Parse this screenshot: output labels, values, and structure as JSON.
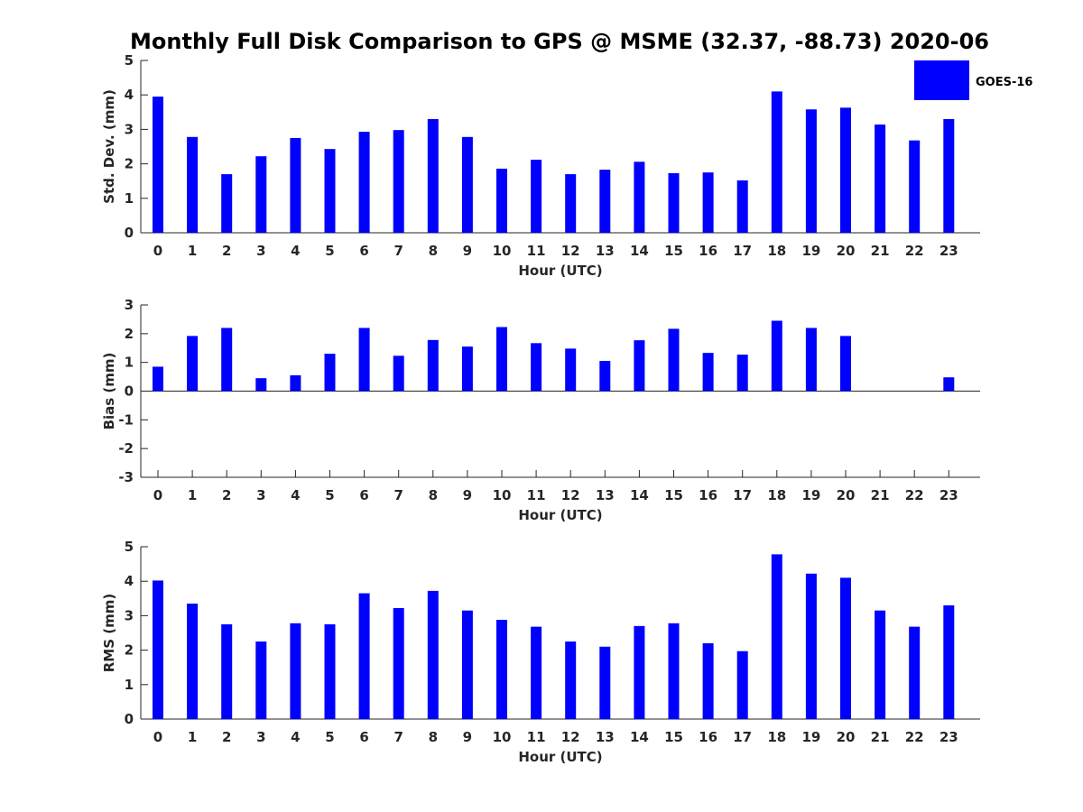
{
  "title": "Monthly Full Disk Comparison to GPS @ MSME (32.37, -88.73) 2020-06",
  "legend": {
    "label": "GOES-16",
    "color": "#0000ff",
    "placement": "top-right"
  },
  "chart_data": [
    {
      "type": "bar",
      "name": "std-dev",
      "ylabel": "Std. Dev. (mm)",
      "xlabel": "Hour (UTC)",
      "ylim": [
        0,
        5
      ],
      "yticks": [
        0,
        1,
        2,
        3,
        4,
        5
      ],
      "categories": [
        "0",
        "1",
        "2",
        "3",
        "4",
        "5",
        "6",
        "7",
        "8",
        "9",
        "10",
        "11",
        "12",
        "13",
        "14",
        "15",
        "16",
        "17",
        "18",
        "19",
        "20",
        "21",
        "22",
        "23"
      ],
      "series": [
        {
          "name": "GOES-16",
          "values": [
            3.95,
            2.78,
            1.7,
            2.22,
            2.75,
            2.43,
            2.93,
            2.98,
            3.3,
            2.78,
            1.86,
            2.12,
            1.7,
            1.83,
            2.06,
            1.73,
            1.75,
            1.52,
            4.1,
            3.58,
            3.63,
            3.14,
            2.68,
            3.3
          ]
        }
      ]
    },
    {
      "type": "bar",
      "name": "bias",
      "ylabel": "Bias (mm)",
      "xlabel": "Hour (UTC)",
      "ylim": [
        -3,
        3
      ],
      "yticks": [
        -3,
        -2,
        -1,
        0,
        1,
        2,
        3
      ],
      "categories": [
        "0",
        "1",
        "2",
        "3",
        "4",
        "5",
        "6",
        "7",
        "8",
        "9",
        "10",
        "11",
        "12",
        "13",
        "14",
        "15",
        "16",
        "17",
        "18",
        "19",
        "20",
        "21",
        "22",
        "23"
      ],
      "series": [
        {
          "name": "GOES-16",
          "values": [
            0.85,
            1.92,
            2.2,
            0.45,
            0.55,
            1.3,
            2.2,
            1.23,
            1.78,
            1.55,
            2.23,
            1.67,
            1.48,
            1.05,
            1.77,
            2.17,
            1.33,
            1.27,
            2.45,
            2.2,
            1.92,
            0,
            0,
            0.48
          ]
        }
      ]
    },
    {
      "type": "bar",
      "name": "rms",
      "ylabel": "RMS (mm)",
      "xlabel": "Hour (UTC)",
      "ylim": [
        0,
        5
      ],
      "yticks": [
        0,
        1,
        2,
        3,
        4,
        5
      ],
      "categories": [
        "0",
        "1",
        "2",
        "3",
        "4",
        "5",
        "6",
        "7",
        "8",
        "9",
        "10",
        "11",
        "12",
        "13",
        "14",
        "15",
        "16",
        "17",
        "18",
        "19",
        "20",
        "21",
        "22",
        "23"
      ],
      "series": [
        {
          "name": "GOES-16",
          "values": [
            4.02,
            3.35,
            2.75,
            2.25,
            2.78,
            2.75,
            3.65,
            3.22,
            3.72,
            3.15,
            2.88,
            2.68,
            2.25,
            2.1,
            2.7,
            2.78,
            2.2,
            1.97,
            4.78,
            4.22,
            4.1,
            3.15,
            2.68,
            3.3
          ]
        }
      ]
    }
  ]
}
